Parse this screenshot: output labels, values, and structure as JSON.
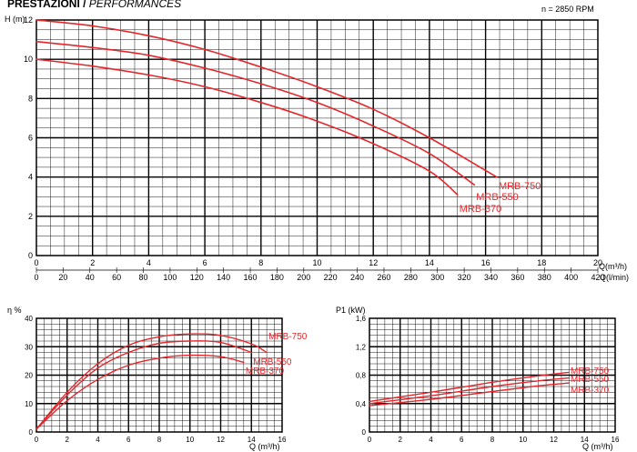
{
  "page": {
    "title_main": "PRESTAZIONI /",
    "title_sub": "PERFORMANCES",
    "speed_note": "n = 2850 RPM"
  },
  "colors": {
    "curve": "#e5272c",
    "grid": "#000000",
    "background": "#ffffff"
  },
  "chart_data": [
    {
      "id": "head",
      "type": "line",
      "title": "",
      "ylabel": "H (m)",
      "xlabel": "Q(m³/h)",
      "xlabel2": "Q(l/min)",
      "xlim": [
        0,
        20
      ],
      "ylim": [
        0,
        12
      ],
      "x_ticks": [
        0,
        2,
        4,
        6,
        8,
        10,
        12,
        14,
        16,
        18,
        20
      ],
      "y_ticks": [
        0,
        2,
        4,
        6,
        8,
        10,
        12
      ],
      "x2_ticks": [
        "0",
        "20",
        "40",
        "60",
        "80",
        "100",
        "120",
        "140",
        "160",
        "180",
        "200",
        "220",
        "240",
        "260",
        "280",
        "300",
        "320",
        "340",
        "360",
        "380",
        "400",
        "420"
      ],
      "series": [
        {
          "name": "MRB-750",
          "points": [
            [
              0,
              12
            ],
            [
              2,
              11.7
            ],
            [
              4,
              11.2
            ],
            [
              6,
              10.5
            ],
            [
              8,
              9.6
            ],
            [
              10,
              8.6
            ],
            [
              12,
              7.45
            ],
            [
              14,
              6.0
            ],
            [
              16.4,
              4.0
            ]
          ]
        },
        {
          "name": "MRB-550",
          "points": [
            [
              0,
              10.9
            ],
            [
              2,
              10.6
            ],
            [
              4,
              10.2
            ],
            [
              6,
              9.55
            ],
            [
              8,
              8.75
            ],
            [
              10,
              7.8
            ],
            [
              12,
              6.6
            ],
            [
              14,
              5.2
            ],
            [
              15.6,
              3.6
            ]
          ]
        },
        {
          "name": "MRB-370",
          "points": [
            [
              0,
              10.0
            ],
            [
              2,
              9.65
            ],
            [
              4,
              9.2
            ],
            [
              6,
              8.6
            ],
            [
              8,
              7.8
            ],
            [
              10,
              6.85
            ],
            [
              12,
              5.7
            ],
            [
              14,
              4.3
            ],
            [
              15.0,
              3.1
            ]
          ]
        }
      ]
    },
    {
      "id": "efficiency",
      "type": "line",
      "title": "",
      "ylabel": "η %",
      "xlabel": "Q (m³/h)",
      "xlim": [
        0,
        16
      ],
      "ylim": [
        0,
        40
      ],
      "x_ticks": [
        0,
        2,
        4,
        6,
        8,
        10,
        12,
        14,
        16
      ],
      "y_ticks": [
        0,
        10,
        20,
        30,
        40
      ],
      "series": [
        {
          "name": "MRB-750",
          "points": [
            [
              0,
              1
            ],
            [
              2,
              14
            ],
            [
              4,
              24
            ],
            [
              6,
              30.5
            ],
            [
              8,
              33.5
            ],
            [
              10,
              34.5
            ],
            [
              12,
              34
            ],
            [
              14,
              31
            ],
            [
              15,
              28
            ]
          ]
        },
        {
          "name": "MRB-550",
          "points": [
            [
              0,
              1
            ],
            [
              2,
              13
            ],
            [
              4,
              22.5
            ],
            [
              6,
              28
            ],
            [
              8,
              31.2
            ],
            [
              10,
              32
            ],
            [
              12,
              31.5
            ],
            [
              14,
              28
            ]
          ]
        },
        {
          "name": "MRB-370",
          "points": [
            [
              0,
              1
            ],
            [
              2,
              11
            ],
            [
              4,
              18.5
            ],
            [
              6,
              23.5
            ],
            [
              8,
              26
            ],
            [
              10,
              27
            ],
            [
              12,
              26.5
            ],
            [
              13.5,
              24.5
            ]
          ]
        }
      ]
    },
    {
      "id": "power",
      "type": "line",
      "title": "",
      "ylabel": "P1 (kW)",
      "xlabel": "Q (m³/h)",
      "xlim": [
        0,
        16
      ],
      "ylim": [
        0,
        1.6
      ],
      "x_ticks": [
        0,
        2,
        4,
        6,
        8,
        10,
        12,
        14,
        16
      ],
      "y_ticks": [
        "0",
        "0,4",
        "0,8",
        "1,2",
        "1,6"
      ],
      "series": [
        {
          "name": "MRB-750",
          "points": [
            [
              0,
              0.43
            ],
            [
              4,
              0.56
            ],
            [
              8,
              0.7
            ],
            [
              11,
              0.79
            ],
            [
              13,
              0.84
            ]
          ]
        },
        {
          "name": "MRB-550",
          "points": [
            [
              0,
              0.4
            ],
            [
              4,
              0.51
            ],
            [
              8,
              0.64
            ],
            [
              11,
              0.72
            ],
            [
              13,
              0.76
            ]
          ]
        },
        {
          "name": "MRB-370",
          "points": [
            [
              0,
              0.37
            ],
            [
              4,
              0.46
            ],
            [
              8,
              0.57
            ],
            [
              11,
              0.65
            ],
            [
              13,
              0.69
            ]
          ]
        }
      ]
    }
  ]
}
